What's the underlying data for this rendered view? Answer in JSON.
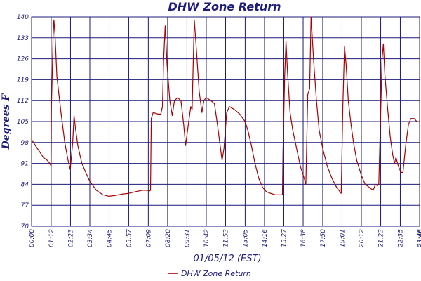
{
  "chart_data": {
    "type": "line",
    "title": "DHW Zone Return",
    "xlabel": "01/05/12 (EST)",
    "ylabel": "Degrees F",
    "ylim": [
      70,
      140
    ],
    "yticks": [
      70,
      77,
      84,
      91,
      98,
      105,
      112,
      119,
      126,
      133,
      140
    ],
    "xlim": [
      "00:00",
      "23:46"
    ],
    "xticks": [
      "00:00",
      "01:12",
      "02:23",
      "03:34",
      "04:45",
      "05:57",
      "07:09",
      "08:20",
      "09:31",
      "10:42",
      "11:53",
      "13:05",
      "14:16",
      "15:27",
      "16:38",
      "17:50",
      "19:01",
      "20:12",
      "21:23",
      "22:35",
      "23:46",
      "23:46"
    ],
    "grid": true,
    "legend_position": "bottom",
    "colors": {
      "line": "#aa0000",
      "grid": "#1c1c7c",
      "text": "#1c1c7c"
    },
    "series": [
      {
        "name": "DHW Zone Return",
        "points": [
          [
            "00:00",
            99
          ],
          [
            "00:14",
            97
          ],
          [
            "00:29",
            95
          ],
          [
            "00:43",
            93
          ],
          [
            "00:58",
            92
          ],
          [
            "01:07",
            91
          ],
          [
            "01:12",
            90
          ],
          [
            "01:13",
            110
          ],
          [
            "01:19",
            133
          ],
          [
            "01:22",
            139
          ],
          [
            "01:26",
            134
          ],
          [
            "01:33",
            120
          ],
          [
            "01:48",
            108
          ],
          [
            "02:02",
            98
          ],
          [
            "02:14",
            92
          ],
          [
            "02:22",
            89
          ],
          [
            "02:31",
            98
          ],
          [
            "02:36",
            107
          ],
          [
            "02:41",
            103
          ],
          [
            "02:50",
            97
          ],
          [
            "03:05",
            91
          ],
          [
            "03:19",
            88
          ],
          [
            "03:34",
            85
          ],
          [
            "03:58",
            82
          ],
          [
            "04:22",
            80.5
          ],
          [
            "04:45",
            80
          ],
          [
            "05:09",
            80.3
          ],
          [
            "05:33",
            80.7
          ],
          [
            "05:57",
            81
          ],
          [
            "06:21",
            81.5
          ],
          [
            "06:45",
            82
          ],
          [
            "07:05",
            82
          ],
          [
            "07:14",
            81.8
          ],
          [
            "07:17",
            82
          ],
          [
            "07:20",
            106
          ],
          [
            "07:27",
            108
          ],
          [
            "07:45",
            107.5
          ],
          [
            "07:55",
            107.5
          ],
          [
            "08:01",
            110
          ],
          [
            "08:05",
            125
          ],
          [
            "08:11",
            137
          ],
          [
            "08:18",
            124
          ],
          [
            "08:28",
            112
          ],
          [
            "08:37",
            107
          ],
          [
            "08:45",
            112
          ],
          [
            "08:57",
            113
          ],
          [
            "09:09",
            112
          ],
          [
            "09:19",
            104
          ],
          [
            "09:26",
            97
          ],
          [
            "09:36",
            104
          ],
          [
            "09:45",
            110
          ],
          [
            "09:50",
            109
          ],
          [
            "09:54",
            125
          ],
          [
            "09:58",
            139
          ],
          [
            "10:05",
            130
          ],
          [
            "10:16",
            115
          ],
          [
            "10:26",
            108
          ],
          [
            "10:33",
            112
          ],
          [
            "10:42",
            113
          ],
          [
            "10:59",
            112
          ],
          [
            "11:12",
            111
          ],
          [
            "11:23",
            104
          ],
          [
            "11:33",
            97
          ],
          [
            "11:40",
            92
          ],
          [
            "11:47",
            96
          ],
          [
            "11:57",
            108
          ],
          [
            "12:07",
            110
          ],
          [
            "12:26",
            109
          ],
          [
            "12:45",
            107.5
          ],
          [
            "13:05",
            105
          ],
          [
            "13:15",
            102
          ],
          [
            "13:28",
            97
          ],
          [
            "13:41",
            91
          ],
          [
            "13:55",
            86
          ],
          [
            "14:09",
            83
          ],
          [
            "14:23",
            81.5
          ],
          [
            "14:38",
            81
          ],
          [
            "14:55",
            80.5
          ],
          [
            "15:22",
            80.5
          ],
          [
            "15:24",
            95
          ],
          [
            "15:30",
            120
          ],
          [
            "15:35",
            132
          ],
          [
            "15:41",
            121
          ],
          [
            "15:50",
            108
          ],
          [
            "16:00",
            102
          ],
          [
            "16:14",
            96
          ],
          [
            "16:28",
            90
          ],
          [
            "16:42",
            86
          ],
          [
            "16:48",
            84
          ],
          [
            "16:55",
            114
          ],
          [
            "17:02",
            116
          ],
          [
            "17:07",
            140
          ],
          [
            "17:17",
            125
          ],
          [
            "17:27",
            112
          ],
          [
            "17:37",
            102
          ],
          [
            "17:50",
            96
          ],
          [
            "18:07",
            90
          ],
          [
            "18:24",
            86
          ],
          [
            "18:41",
            83
          ],
          [
            "18:58",
            81
          ],
          [
            "19:04",
            110
          ],
          [
            "19:10",
            130
          ],
          [
            "19:16",
            124
          ],
          [
            "19:24",
            112
          ],
          [
            "19:34",
            104
          ],
          [
            "19:43",
            98
          ],
          [
            "19:55",
            92
          ],
          [
            "20:12",
            87
          ],
          [
            "20:26",
            84
          ],
          [
            "20:41",
            83
          ],
          [
            "20:55",
            82
          ],
          [
            "21:04",
            84
          ],
          [
            "21:11",
            83.5
          ],
          [
            "21:16",
            84
          ],
          [
            "21:22",
            105
          ],
          [
            "21:28",
            126
          ],
          [
            "21:33",
            131
          ],
          [
            "21:38",
            121
          ],
          [
            "21:48",
            110
          ],
          [
            "21:58",
            100
          ],
          [
            "22:07",
            94
          ],
          [
            "22:14",
            91
          ],
          [
            "22:19",
            93
          ],
          [
            "22:28",
            90
          ],
          [
            "22:38",
            88
          ],
          [
            "22:45",
            88
          ],
          [
            "22:55",
            97
          ],
          [
            "23:05",
            104
          ],
          [
            "23:14",
            106
          ],
          [
            "23:26",
            106
          ],
          [
            "23:36",
            105
          ]
        ]
      }
    ]
  }
}
